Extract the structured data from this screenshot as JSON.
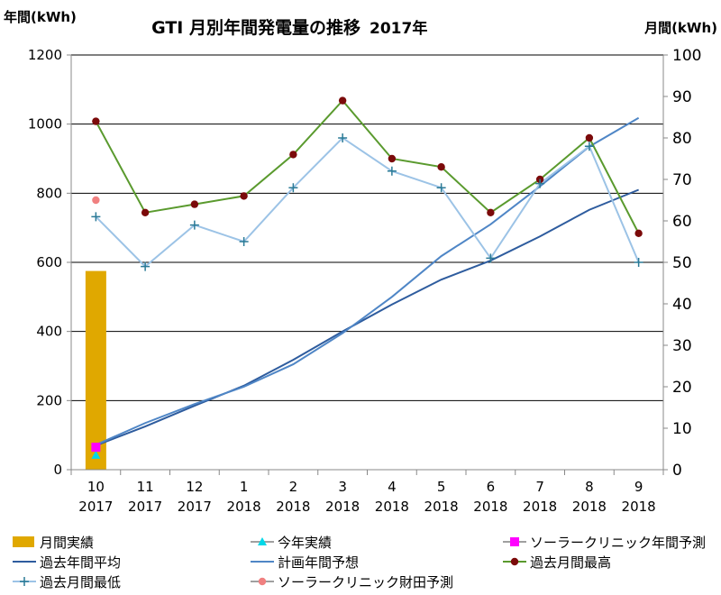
{
  "chart_data": {
    "type": "line",
    "title": "GTI 月別年間発電量の推移",
    "subtitle": "2017年",
    "ylabel_left": "年間(kWh)",
    "ylabel_right": "月間(kWh)",
    "ylim_left": [
      0,
      1200
    ],
    "yticks_left": [
      0,
      200,
      400,
      600,
      800,
      1000,
      1200
    ],
    "ylim_right": [
      0,
      100
    ],
    "yticks_right": [
      0,
      10,
      20,
      30,
      40,
      50,
      60,
      70,
      80,
      90,
      100
    ],
    "categories": [
      {
        "month": "10",
        "year": "2017"
      },
      {
        "month": "11",
        "year": "2017"
      },
      {
        "month": "12",
        "year": "2017"
      },
      {
        "month": "1",
        "year": "2018"
      },
      {
        "month": "2",
        "year": "2018"
      },
      {
        "month": "3",
        "year": "2018"
      },
      {
        "month": "4",
        "year": "2018"
      },
      {
        "month": "5",
        "year": "2018"
      },
      {
        "month": "6",
        "year": "2018"
      },
      {
        "month": "7",
        "year": "2018"
      },
      {
        "month": "8",
        "year": "2018"
      },
      {
        "month": "9",
        "year": "2018"
      }
    ],
    "series": [
      {
        "name": "月間実績",
        "kind": "bar",
        "axis": "left",
        "color": "#E0A800",
        "values": [
          575,
          null,
          null,
          null,
          null,
          null,
          null,
          null,
          null,
          null,
          null,
          null
        ]
      },
      {
        "name": "今年実績",
        "kind": "marker",
        "marker": "triangle",
        "axis": "left",
        "color": "#00D8E8",
        "values": [
          42,
          null,
          null,
          null,
          null,
          null,
          null,
          null,
          null,
          null,
          null,
          null
        ]
      },
      {
        "name": "ソーラークリニック年間予測",
        "kind": "marker",
        "marker": "square",
        "axis": "left",
        "color": "#FF00FF",
        "values": [
          65,
          null,
          null,
          null,
          null,
          null,
          null,
          null,
          null,
          null,
          null,
          null
        ]
      },
      {
        "name": "過去年間平均",
        "kind": "line",
        "axis": "left",
        "color": "#2E5C9E",
        "values": [
          70,
          125,
          185,
          243,
          318,
          400,
          478,
          550,
          605,
          675,
          752,
          810
        ]
      },
      {
        "name": "計画年間予想",
        "kind": "line",
        "axis": "left",
        "color": "#4F86C6",
        "values": [
          72,
          135,
          190,
          240,
          305,
          395,
          500,
          618,
          710,
          820,
          935,
          1018
        ]
      },
      {
        "name": "過去月間最高",
        "kind": "line-marker",
        "marker": "circle",
        "axis": "right",
        "color": "#5A9A2E",
        "marker_color": "#7B0A0A",
        "values": [
          84,
          62,
          64,
          66,
          76,
          89,
          75,
          73,
          62,
          70,
          80,
          57
        ]
      },
      {
        "name": "過去月間最低",
        "kind": "line-marker",
        "marker": "plus",
        "axis": "right",
        "color": "#9CC3E6",
        "marker_color": "#2A7A96",
        "values": [
          61,
          49,
          59,
          55,
          68,
          80,
          72,
          68,
          51,
          69,
          78,
          50
        ]
      },
      {
        "name": "ソーラークリニック財田予測",
        "kind": "marker",
        "marker": "circle",
        "axis": "right",
        "color": "#F08080",
        "values": [
          65,
          null,
          null,
          null,
          null,
          null,
          null,
          null,
          null,
          null,
          null,
          null
        ]
      }
    ],
    "legend": {
      "position": "bottom",
      "order": [
        0,
        1,
        2,
        3,
        4,
        5,
        6,
        7
      ]
    }
  }
}
